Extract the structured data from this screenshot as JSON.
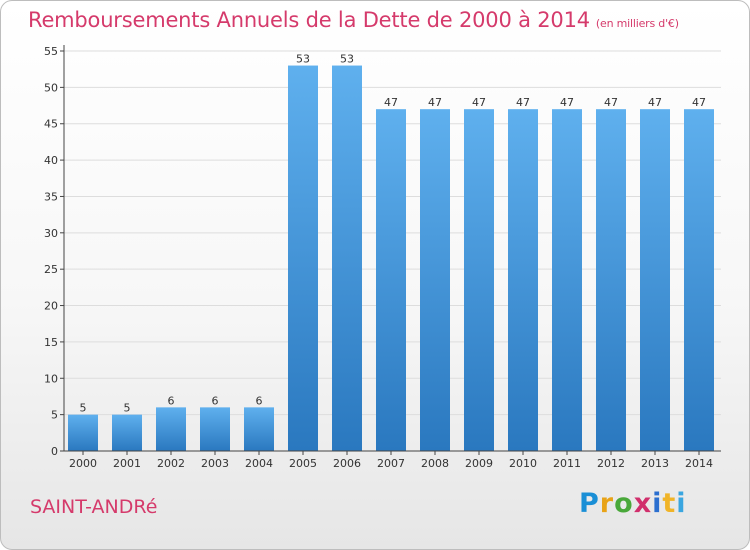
{
  "title": "Remboursements Annuels de la Dette de 2000 à 2014",
  "unit": "(en milliers d'€)",
  "place": "SAINT-ANDRé",
  "logo": {
    "text": "Proxiti",
    "colors": [
      "#1a8fd6",
      "#e8a317",
      "#49a83a",
      "#d12f6c",
      "#2b6fcf",
      "#f0b428",
      "#3aa6e0"
    ]
  },
  "colors": {
    "title": "#d53a6b",
    "bar_top": "#5fb0ee",
    "bar_bottom": "#2a78bf",
    "grid": "#dddddd"
  },
  "chart_data": {
    "type": "bar",
    "categories": [
      "2000",
      "2001",
      "2002",
      "2003",
      "2004",
      "2005",
      "2006",
      "2007",
      "2008",
      "2009",
      "2010",
      "2011",
      "2012",
      "2013",
      "2014"
    ],
    "values": [
      5,
      5,
      6,
      6,
      6,
      53,
      53,
      47,
      47,
      47,
      47,
      47,
      47,
      47,
      47
    ],
    "ylim": [
      0,
      55
    ],
    "yticks": [
      0,
      5,
      10,
      15,
      20,
      25,
      30,
      35,
      40,
      45,
      50,
      55
    ],
    "grid": true
  }
}
